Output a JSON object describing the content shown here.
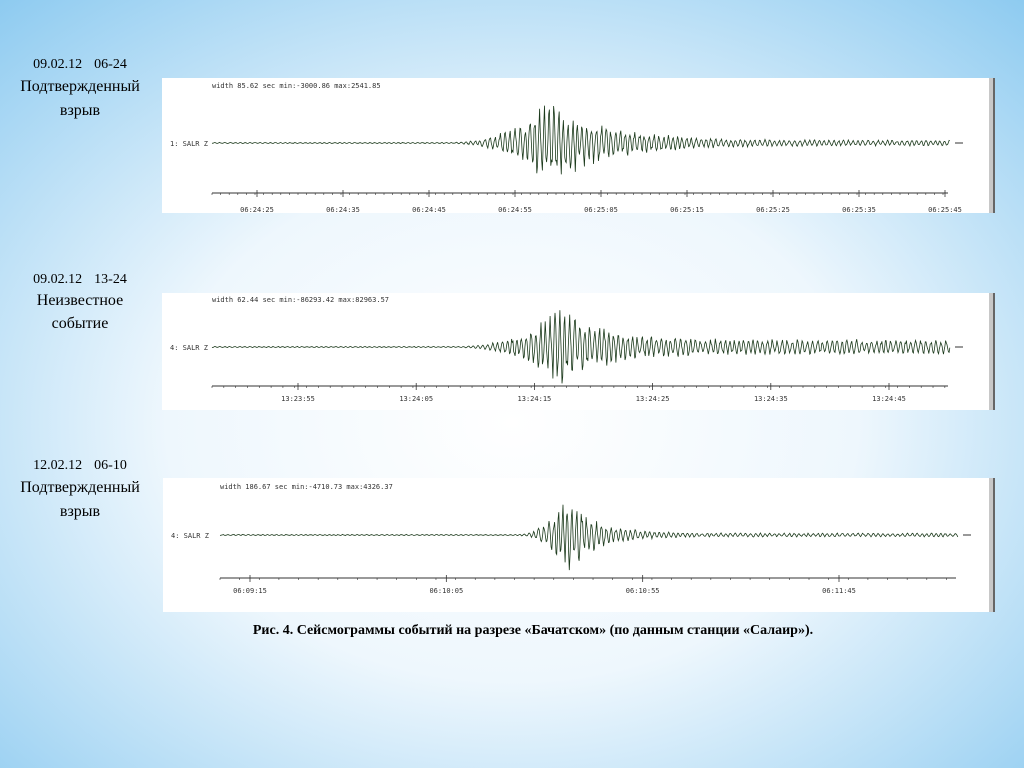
{
  "panels": [
    {
      "date": "09.02.12",
      "time": "06-24",
      "event": [
        "Подтвержденный",
        "взрыв"
      ],
      "info": "width 85.62 sec  min:-3000.86 max:2541.85",
      "channel": "1: SALR Z",
      "times": [
        "06:24:25",
        "06:24:35",
        "06:24:45",
        "06:24:55",
        "06:25:05",
        "06:25:15",
        "06:25:25",
        "06:25:35",
        "06:25:45"
      ]
    },
    {
      "date": "09.02.12",
      "time": "13-24",
      "event": [
        "Неизвестное",
        "событие"
      ],
      "info": "width 62.44 sec  min:-86293.42 max:82963.57",
      "channel": "4: SALR Z",
      "times": [
        "13:23:55",
        "13:24:05",
        "13:24:15",
        "13:24:25",
        "13:24:35",
        "13:24:45"
      ]
    },
    {
      "date": "12.02.12",
      "time": "06-10",
      "event": [
        "Подтвержденный",
        "взрыв"
      ],
      "info": "width 186.67 sec  min:-4710.73 max:4326.37",
      "channel": "4: SALR Z",
      "times": [
        "06:09:15",
        "06:10:05",
        "06:10:55",
        "06:11:45"
      ]
    }
  ],
  "caption": "Рис. 4. Сейсмограммы событий на разрезе «Бачатском» (по данным станции «Салаир»)."
}
